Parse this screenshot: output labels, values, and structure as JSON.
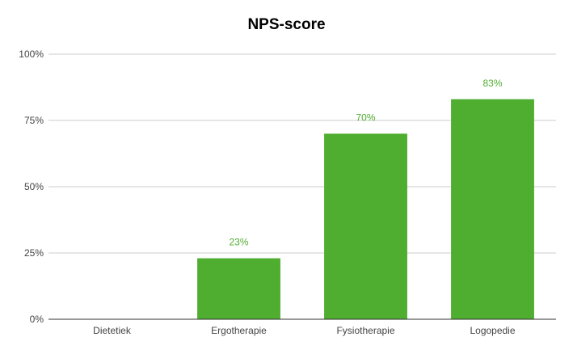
{
  "chart_data": {
    "type": "bar",
    "title": "NPS-score",
    "categories": [
      "Dietetiek",
      "Ergotherapie",
      "Fysiotherapie",
      "Logopedie"
    ],
    "values": [
      0,
      23,
      70,
      83
    ],
    "data_labels": [
      "",
      "23%",
      "70%",
      "83%"
    ],
    "ylim": [
      0,
      100
    ],
    "y_ticks": [
      {
        "value": 0,
        "label": "0%"
      },
      {
        "value": 25,
        "label": "25%"
      },
      {
        "value": 50,
        "label": "50%"
      },
      {
        "value": 75,
        "label": "75%"
      },
      {
        "value": 100,
        "label": "100%"
      }
    ],
    "xlabel": "",
    "ylabel": "",
    "grid": true,
    "legend": "none",
    "colors": {
      "bar": "#4fad30",
      "label": "#4fad30",
      "grid": "#cccccc",
      "axis": "#333333"
    }
  }
}
